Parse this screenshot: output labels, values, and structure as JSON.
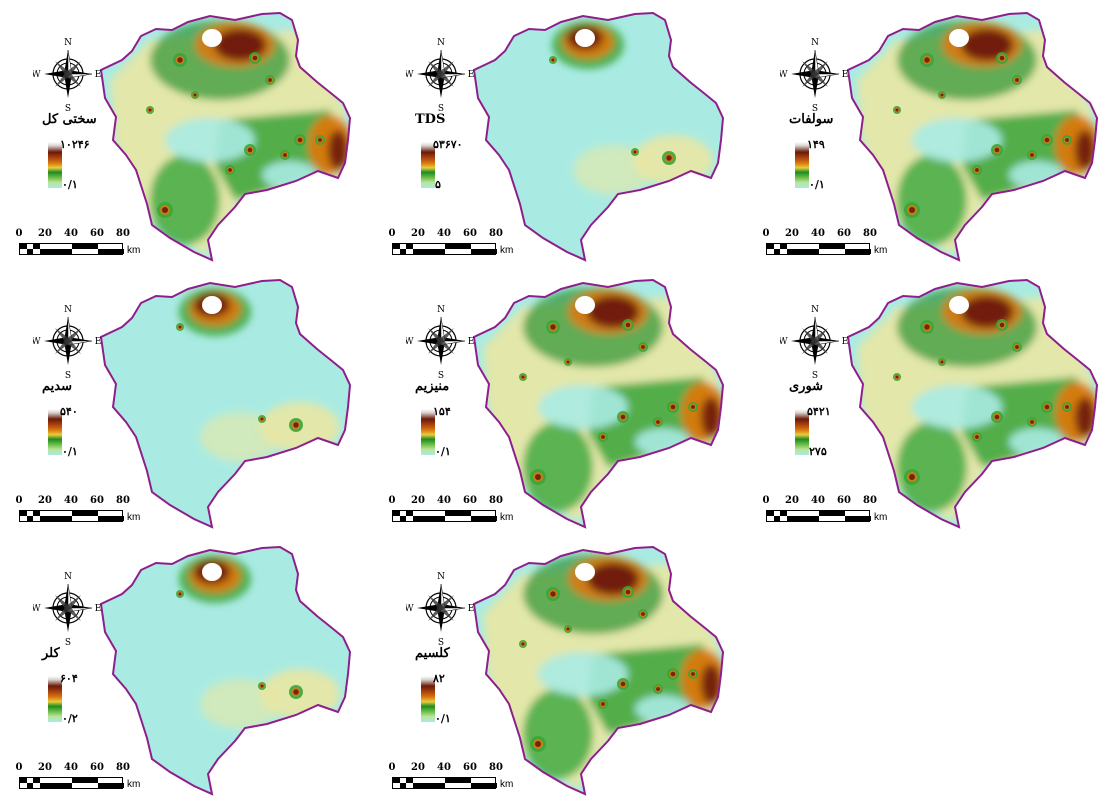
{
  "figure": {
    "panels": [
      {
        "id": "total-hardness",
        "label": "سختی کل",
        "legend_max": "۱۰۲۴۶",
        "legend_min": "۰/۱",
        "pattern": "high-green"
      },
      {
        "id": "tds",
        "label": "TDS",
        "legend_max": "۵۳۶۷۰",
        "legend_min": "۵",
        "pattern": "mostly-low"
      },
      {
        "id": "sulfate",
        "label": "سولفات",
        "legend_max": "۱۴۹",
        "legend_min": "۰/۱",
        "pattern": "high-green"
      },
      {
        "id": "sodium",
        "label": "سدیم",
        "legend_max": "۵۴۰",
        "legend_min": "۰/۱",
        "pattern": "mostly-low"
      },
      {
        "id": "magnesium",
        "label": "منیزیم",
        "legend_max": "۱۵۴",
        "legend_min": "۰/۱",
        "pattern": "high-green"
      },
      {
        "id": "salinity",
        "label": "شوری",
        "legend_max": "۵۴۲۱",
        "legend_min": "۲۷۵",
        "pattern": "high-green"
      },
      {
        "id": "chloride",
        "label": "کلر",
        "legend_max": "۶۰۴",
        "legend_min": "۰/۲",
        "pattern": "mostly-low"
      },
      {
        "id": "calcium",
        "label": "کلسیم",
        "legend_max": "۸۲",
        "legend_min": "۰/۱",
        "pattern": "high-green"
      }
    ],
    "compass": {
      "n": "N",
      "s": "S",
      "e": "E",
      "w": "W"
    },
    "scale": {
      "ticks": [
        "0",
        "20",
        "40",
        "60",
        "80"
      ],
      "unit": "km"
    },
    "colors": {
      "boundary": "#8e1e8c",
      "low": "#a9ebe3",
      "mid": "#e9e7a4",
      "green": "#3aa53a",
      "dark_green": "#1d8b24",
      "orange": "#d9790f",
      "brown": "#6b1a08",
      "peak": "#ffffff"
    }
  }
}
